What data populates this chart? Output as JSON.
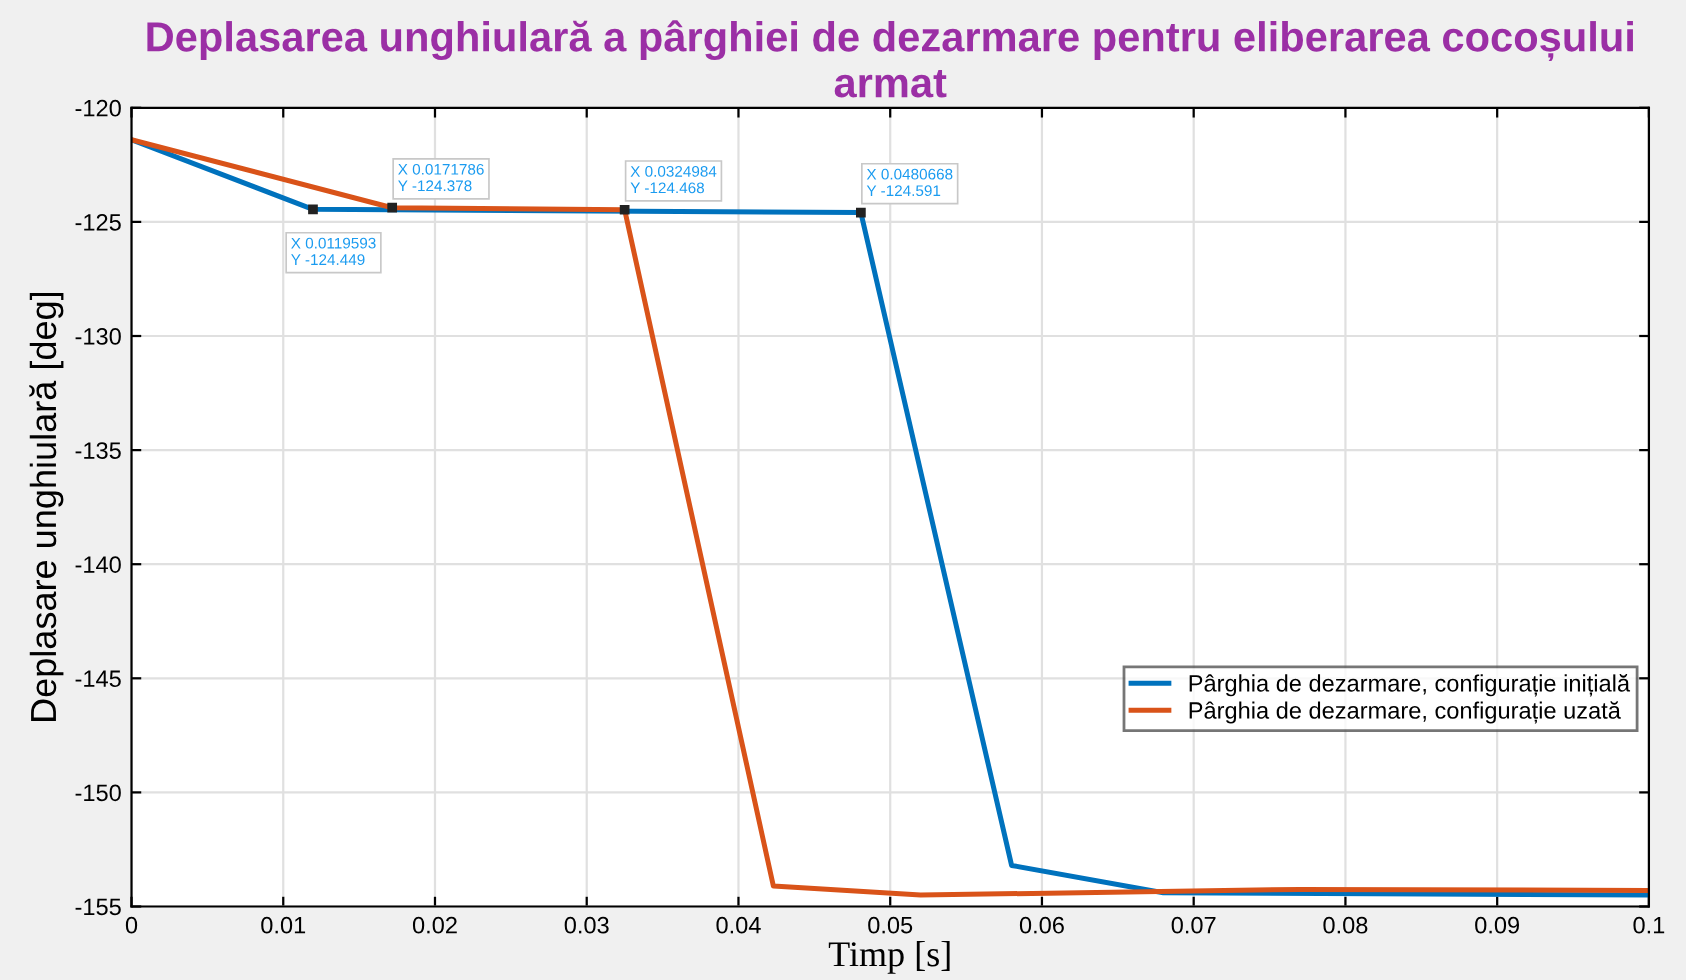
{
  "chart_data": {
    "type": "line",
    "title": "Deplasarea unghiulară a pârghiei de dezarmare pentru eliberarea cocoșului armat",
    "xlabel": "Timp [s]",
    "ylabel": "Deplasare unghiulară [deg]",
    "series": [
      {
        "name": "Pârghia de dezarmare, configurație inițială",
        "color": "#0072bd",
        "x": [
          0,
          0.0119593,
          0.0480668,
          0.058,
          0.068,
          0.1
        ],
        "values": [
          -121.4,
          -124.449,
          -124.591,
          -153.2,
          -154.4,
          -154.5
        ]
      },
      {
        "name": "Pârghia de dezarmare, configurație uzată",
        "color": "#d95319",
        "x": [
          0,
          0.0171786,
          0.0324984,
          0.0423,
          0.052,
          0.077,
          0.1
        ],
        "values": [
          -121.4,
          -124.378,
          -124.468,
          -154.1,
          -154.5,
          -154.25,
          -154.3
        ]
      }
    ],
    "annotations": [
      {
        "text": "X 0.0119593\nY -124.449",
        "x": 0.0119593,
        "y": -124.449
      },
      {
        "text": "X 0.0171786\nY -124.378",
        "x": 0.0171786,
        "y": -124.378
      },
      {
        "text": "X 0.0324984\nY -124.468",
        "x": 0.0324984,
        "y": -124.468
      },
      {
        "text": "X 0.0480668\nY -124.591",
        "x": 0.0480668,
        "y": -124.591
      }
    ],
    "xlim": [
      0,
      0.1
    ],
    "xticks": [
      0,
      0.01,
      0.02,
      0.03,
      0.04,
      0.05,
      0.06,
      0.07,
      0.08,
      0.09,
      0.1
    ],
    "ylim": [
      -155,
      -120
    ],
    "yticks": [
      -155,
      -150,
      -145,
      -140,
      -135,
      -130,
      -125,
      -120
    ],
    "grid": true,
    "legend": "right",
    "marker": "none",
    "line_style": "solid"
  }
}
